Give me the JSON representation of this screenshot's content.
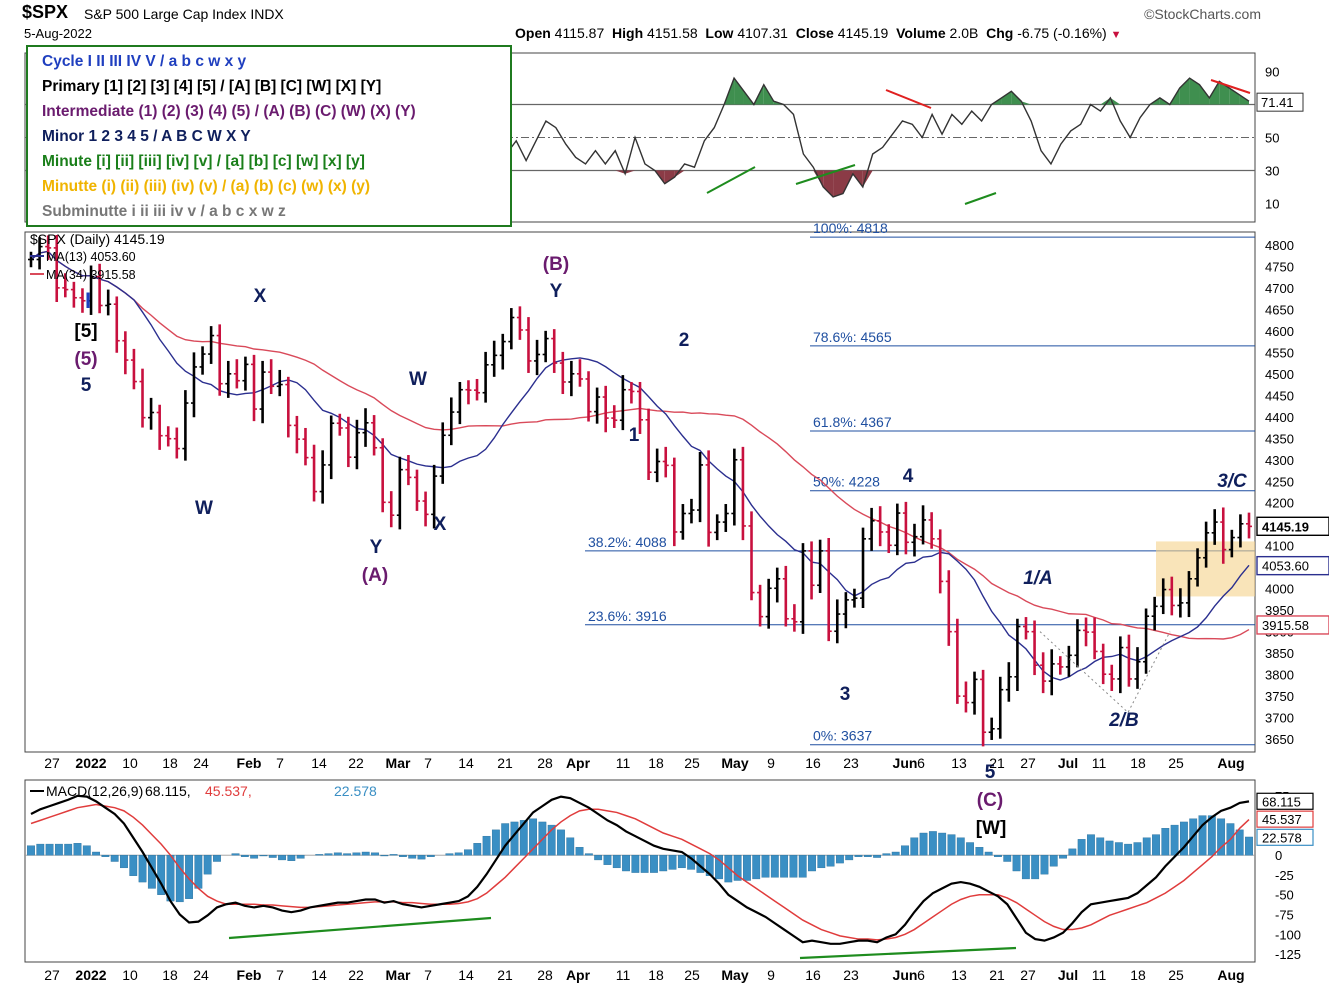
{
  "header": {
    "symbol": "$SPX",
    "name": "S&P 500 Large Cap Index",
    "exchange": "INDX",
    "date": "5-Aug-2022",
    "brand": "©StockCharts.com",
    "open_label": "Open",
    "open": "4115.87",
    "high_label": "High",
    "high": "4151.58",
    "low_label": "Low",
    "low": "4107.31",
    "close_label": "Close",
    "close": "4145.19",
    "volume_label": "Volume",
    "volume": "2.0B",
    "chg_label": "Chg",
    "chg": "-6.75 (-0.16%)",
    "chg_arrow": "▼"
  },
  "wave_legend": [
    {
      "text": "Cycle I II III IV V / a b c w x y",
      "color": "#1f3fbf"
    },
    {
      "text": "Primary [1] [2] [3] [4] [5] / [A] [B] [C] [W] [X] [Y]",
      "color": "#000000"
    },
    {
      "text": "Intermediate (1) (2) (3) (4) (5) / (A) (B) (C) (W) (X) (Y)",
      "color": "#6a1b6e"
    },
    {
      "text": "Minor 1 2 3 4 5 / A B C W X Y",
      "color": "#0f1f5c"
    },
    {
      "text": "Minute [i] [ii] [iii] [iv] [v] / [a] [b] [c] [w] [x] [y]",
      "color": "#1a7f1a"
    },
    {
      "text": "Minutte (i) (ii) (iii) (iv) (v) / (a) (b) (c) (w) (x) (y)",
      "color": "#f0b400"
    },
    {
      "text": "Subminutte i ii iii iv v / a b c x w z",
      "color": "#777777"
    }
  ],
  "colors": {
    "up": "#000000",
    "down": "#c8103e",
    "ma13": "#2b2f8f",
    "ma34": "#d94a5a",
    "fib": "#1f4fa0",
    "macd_hist": "#3a8fc4",
    "macd_line": "#000000",
    "signal_line": "#e03c3c",
    "divergence_green": "#1e8c1e",
    "divergence_red": "#e02020",
    "rsi_fill_high": "#3f8f4f",
    "rsi_fill_low": "#8b3b46",
    "zone_fill": "#f5d28a"
  },
  "chart_data": [
    {
      "type": "line",
      "panel": "rsi",
      "y_ticks": [
        90,
        70,
        50,
        30,
        10
      ],
      "ylim": [
        0,
        100
      ],
      "current_label": "71.41",
      "series": [
        {
          "values": [
            82,
            78,
            85,
            82,
            76,
            60,
            40,
            52,
            58,
            42,
            45,
            38,
            34,
            26,
            28,
            48,
            44,
            52,
            38,
            28,
            22,
            24,
            36,
            40,
            62,
            44,
            40,
            30,
            38,
            36,
            58,
            62,
            54,
            40,
            52,
            48,
            38,
            30,
            18,
            20,
            30,
            36,
            40,
            54,
            60,
            42,
            28,
            22,
            40,
            48,
            36,
            48,
            60,
            56,
            46,
            38,
            34,
            42,
            34,
            42,
            28,
            50,
            34,
            30,
            22,
            26,
            34,
            32,
            48,
            56,
            70,
            86,
            78,
            70,
            82,
            72,
            70,
            64,
            40,
            32,
            20,
            14,
            16,
            28,
            20,
            40,
            44,
            52,
            60,
            58,
            50,
            64,
            52,
            64,
            58,
            66,
            60,
            70,
            74,
            78,
            72,
            60,
            42,
            34,
            46,
            54,
            58,
            70,
            66,
            74,
            60,
            50,
            62,
            70,
            74,
            70,
            80,
            86,
            82,
            74,
            84,
            80,
            76,
            72
          ]
        }
      ]
    },
    {
      "type": "line",
      "panel": "price",
      "title": "$SPX (Daily) 4145.19",
      "ma13_label": "MA(13) 4053.60",
      "ma34_label": "MA(34) 3915.58",
      "y_ticks": [
        4800,
        4750,
        4700,
        4650,
        4600,
        4550,
        4500,
        4450,
        4400,
        4350,
        4300,
        4250,
        4200,
        4150,
        4100,
        4050,
        4000,
        3950,
        3900,
        3850,
        3800,
        3750,
        3700,
        3650
      ],
      "ylim": [
        3620,
        4830
      ],
      "current_labels": [
        "4145.19",
        "4053.60",
        "3915.58"
      ],
      "fib_levels": [
        {
          "label": "100%: 4818",
          "value": 4818
        },
        {
          "label": "78.6%: 4565",
          "value": 4565
        },
        {
          "label": "61.8%: 4367",
          "value": 4367
        },
        {
          "label": "50%: 4228",
          "value": 4228
        },
        {
          "label": "38.2%: 4088",
          "value": 4088
        },
        {
          "label": "23.6%: 3916",
          "value": 3916
        },
        {
          "label": "0%: 3637",
          "value": 3637
        }
      ],
      "close": [
        4766,
        4796,
        4793,
        4700,
        4696,
        4677,
        4670,
        4726,
        4659,
        4662,
        4577,
        4532,
        4482,
        4398,
        4410,
        4356,
        4349,
        4326,
        4432,
        4516,
        4546,
        4589,
        4477,
        4500,
        4484,
        4522,
        4418,
        4504,
        4471,
        4475,
        4380,
        4348,
        4305,
        4226,
        4288,
        4385,
        4374,
        4306,
        4363,
        4386,
        4328,
        4201,
        4171,
        4277,
        4259,
        4204,
        4173,
        4262,
        4357,
        4411,
        4463,
        4462,
        4456,
        4521,
        4543,
        4575,
        4631,
        4602,
        4530,
        4545,
        4582,
        4525,
        4481,
        4500,
        4488,
        4412,
        4446,
        4397,
        4392,
        4463,
        4459,
        4393,
        4271,
        4296,
        4287,
        4132,
        4175,
        4183,
        4288,
        4131,
        4155,
        4175,
        4300,
        4146,
        3991,
        3935,
        4001,
        4023,
        3930,
        3923,
        4088,
        4008,
        4088,
        3901,
        3941,
        3974,
        3978,
        4116,
        4158,
        4132,
        4101,
        4176,
        4108,
        4121,
        4160,
        4116,
        4017,
        3900,
        3750,
        3735,
        3789,
        3666,
        3674,
        3765,
        3795,
        3912,
        3900,
        3822,
        3785,
        3825,
        3818,
        3845,
        3903,
        3899,
        3854,
        3801,
        3790,
        3863,
        3790,
        3830,
        3936,
        3959,
        3998,
        3961,
        3967,
        4023,
        4072,
        4130,
        4155,
        4091,
        4119,
        4151,
        4145
      ]
    },
    {
      "type": "line",
      "panel": "macd",
      "title": "MACD(12,26,9) 68.115, 45.537, 22.578",
      "legend_name": "MACD(12,26,9)",
      "legend_value_macd": "68.115",
      "legend_value_signal": "45.537",
      "legend_value_hist": "22.578",
      "y_ticks": [
        75,
        50,
        25,
        0,
        -25,
        -50,
        -75,
        -100,
        -125
      ],
      "ylim": [
        -135,
        95
      ],
      "series": [
        {
          "name": "MACD",
          "values": [
            52,
            58,
            62,
            66,
            70,
            75,
            74,
            68,
            60,
            52,
            40,
            22,
            4,
            -16,
            -36,
            -58,
            -75,
            -85,
            -84,
            -76,
            -66,
            -62,
            -60,
            -64,
            -66,
            -64,
            -66,
            -70,
            -72,
            -70,
            -66,
            -64,
            -62,
            -60,
            -60,
            -58,
            -56,
            -56,
            -60,
            -58,
            -62,
            -64,
            -66,
            -64,
            -62,
            -60,
            -58,
            -52,
            -40,
            -24,
            -6,
            12,
            26,
            40,
            54,
            62,
            70,
            74,
            72,
            66,
            60,
            52,
            44,
            38,
            30,
            24,
            18,
            12,
            8,
            6,
            4,
            -4,
            -14,
            -24,
            -36,
            -50,
            -58,
            -66,
            -72,
            -78,
            -86,
            -94,
            -102,
            -110,
            -108,
            -110,
            -112,
            -112,
            -110,
            -108,
            -108,
            -110,
            -104,
            -100,
            -88,
            -72,
            -58,
            -48,
            -42,
            -36,
            -34,
            -36,
            -40,
            -46,
            -52,
            -62,
            -80,
            -98,
            -106,
            -108,
            -104,
            -98,
            -86,
            -72,
            -62,
            -60,
            -58,
            -56,
            -54,
            -48,
            -38,
            -28,
            -14,
            -2,
            10,
            24,
            38,
            48,
            56,
            60,
            66,
            68
          ]
        },
        {
          "name": "Signal",
          "values": [
            40,
            44,
            48,
            52,
            56,
            60,
            62,
            64,
            62,
            60,
            56,
            48,
            38,
            26,
            14,
            0,
            -16,
            -30,
            -42,
            -52,
            -58,
            -62,
            -62,
            -62,
            -62,
            -63,
            -63,
            -64,
            -65,
            -66,
            -66,
            -65,
            -64,
            -63,
            -62,
            -61,
            -60,
            -59,
            -59,
            -59,
            -60,
            -60,
            -61,
            -62,
            -62,
            -62,
            -61,
            -59,
            -55,
            -48,
            -38,
            -28,
            -16,
            -4,
            8,
            20,
            32,
            42,
            50,
            56,
            58,
            58,
            56,
            54,
            50,
            46,
            40,
            34,
            28,
            24,
            20,
            14,
            8,
            2,
            -6,
            -16,
            -26,
            -34,
            -42,
            -50,
            -58,
            -66,
            -74,
            -82,
            -88,
            -94,
            -98,
            -102,
            -104,
            -106,
            -106,
            -107,
            -106,
            -104,
            -100,
            -94,
            -86,
            -78,
            -70,
            -62,
            -56,
            -52,
            -50,
            -50,
            -50,
            -54,
            -60,
            -68,
            -76,
            -84,
            -90,
            -94,
            -94,
            -92,
            -88,
            -82,
            -76,
            -72,
            -68,
            -64,
            -60,
            -54,
            -48,
            -40,
            -32,
            -22,
            -12,
            -2,
            10,
            20,
            34,
            45
          ]
        }
      ]
    }
  ],
  "x_axis": {
    "labels": [
      "27",
      "2022",
      "10",
      "18",
      "24",
      "Feb",
      "7",
      "14",
      "22",
      "Mar",
      "7",
      "14",
      "21",
      "28",
      "Apr",
      "11",
      "18",
      "25",
      "May",
      "9",
      "16",
      "23",
      "Jun",
      "6",
      "13",
      "21",
      "27",
      "Jul",
      "11",
      "18",
      "25",
      "Aug"
    ]
  },
  "wave_labels": [
    {
      "text": "I",
      "color": "#1f3fbf"
    },
    {
      "text": "[5]",
      "color": "#000000"
    },
    {
      "text": "(5)",
      "color": "#6a1b6e"
    },
    {
      "text": "5",
      "color": "#0f1f5c"
    },
    {
      "text": "X",
      "color": "#0f1f5c"
    },
    {
      "text": "W",
      "color": "#0f1f5c"
    },
    {
      "text": "W",
      "color": "#0f1f5c"
    },
    {
      "text": "Y",
      "color": "#0f1f5c"
    },
    {
      "text": "(A)",
      "color": "#6a1b6e"
    },
    {
      "text": "X",
      "color": "#0f1f5c"
    },
    {
      "text": "(B)",
      "color": "#6a1b6e"
    },
    {
      "text": "Y",
      "color": "#0f1f5c"
    },
    {
      "text": "2",
      "color": "#0f1f5c"
    },
    {
      "text": "1",
      "color": "#0f1f5c"
    },
    {
      "text": "3",
      "color": "#0f1f5c"
    },
    {
      "text": "4",
      "color": "#0f1f5c"
    },
    {
      "text": "5",
      "color": "#0f1f5c"
    },
    {
      "text": "(C)",
      "color": "#6a1b6e"
    },
    {
      "text": "[W]",
      "color": "#000000"
    },
    {
      "text": "1/A",
      "color": "#0f1f5c"
    },
    {
      "text": "2/B",
      "color": "#0f1f5c"
    },
    {
      "text": "3/C",
      "color": "#0f1f5c"
    }
  ]
}
